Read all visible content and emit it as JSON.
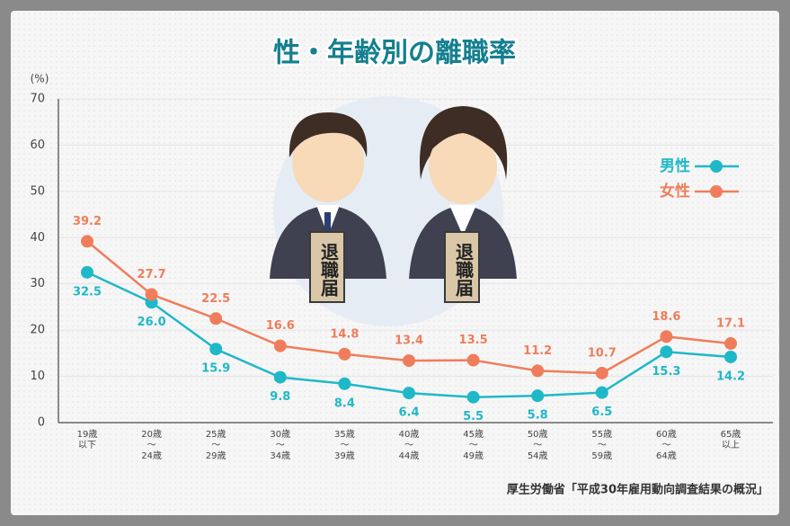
{
  "chart_data": {
    "type": "line",
    "title": "性・年齢別の離職率",
    "y_label": "(%)",
    "source": "厚生労働省「平成30年雇用動向調査結果の概況」",
    "annotations": [
      "退職届",
      "退職届"
    ],
    "categories": [
      "19歳\n以下",
      "20歳\n〜\n24歳",
      "25歳\n〜\n29歳",
      "30歳\n〜\n34歳",
      "35歳\n〜\n39歳",
      "40歳\n〜\n44歳",
      "45歳\n〜\n49歳",
      "50歳\n〜\n54歳",
      "55歳\n〜\n59歳",
      "60歳\n〜\n64歳",
      "65歳\n以上"
    ],
    "series": [
      {
        "name": "男性",
        "color": "#1fb8c8",
        "values": [
          32.5,
          26.0,
          15.9,
          9.8,
          8.4,
          6.4,
          5.5,
          5.8,
          6.5,
          15.3,
          14.2
        ],
        "value_labels": [
          "32.5",
          "26.0",
          "15.9",
          "9.8",
          "8.4",
          "6.4",
          "5.5",
          "5.8",
          "6.5",
          "15.3",
          "14.2"
        ]
      },
      {
        "name": "女性",
        "color": "#ef7d5b",
        "values": [
          39.2,
          27.7,
          22.5,
          16.6,
          14.8,
          13.4,
          13.5,
          11.2,
          10.7,
          18.6,
          17.1
        ],
        "value_labels": [
          "39.2",
          "27.7",
          "22.5",
          "16.6",
          "14.8",
          "13.4",
          "13.5",
          "11.2",
          "10.7",
          "18.6",
          "17.1"
        ]
      }
    ],
    "ylim": [
      0,
      70
    ],
    "yticks": [
      0,
      10,
      20,
      30,
      40,
      50,
      60,
      70
    ],
    "grid": true
  }
}
